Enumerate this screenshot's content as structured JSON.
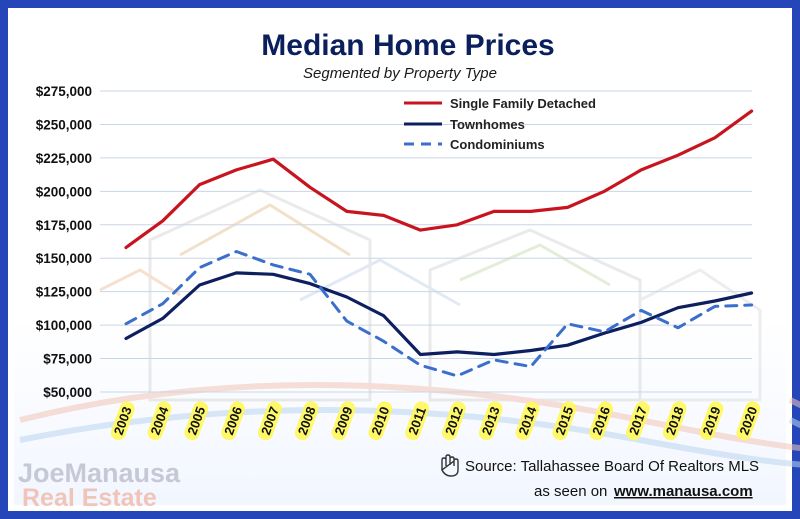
{
  "chart_data": {
    "type": "line",
    "title": "Median Home Prices",
    "subtitle": "Segmented by Property Type",
    "categories": [
      "2003",
      "2004",
      "2005",
      "2006",
      "2007",
      "2008",
      "2009",
      "2010",
      "2011",
      "2012",
      "2013",
      "2014",
      "2015",
      "2016",
      "2017",
      "2018",
      "2019",
      "2020"
    ],
    "y_tick_labels": [
      "$275,000",
      "$250,000",
      "$225,000",
      "$200,000",
      "$175,000",
      "$150,000",
      "$125,000",
      "$100,000",
      "$75,000",
      "$50,000"
    ],
    "y_ticks": [
      275000,
      250000,
      225000,
      200000,
      175000,
      150000,
      125000,
      100000,
      75000,
      50000
    ],
    "ylim": [
      50000,
      275000
    ],
    "grid": true,
    "legend_position": "top-right",
    "series": [
      {
        "name": "Single Family Detached",
        "color": "#c8141e",
        "style": "solid",
        "values": [
          158000,
          178000,
          205000,
          216000,
          224000,
          203000,
          185000,
          182000,
          171000,
          175000,
          185000,
          185000,
          188000,
          200000,
          216000,
          227000,
          240000,
          260000
        ]
      },
      {
        "name": "Townhomes",
        "color": "#0d1f5e",
        "style": "solid",
        "values": [
          90000,
          105000,
          130000,
          139000,
          138000,
          131000,
          121000,
          107000,
          78000,
          80000,
          78000,
          81000,
          85000,
          94000,
          102000,
          113000,
          118000,
          124000
        ]
      },
      {
        "name": "Condominiums",
        "color": "#3a6fcc",
        "style": "dashed",
        "values": [
          101000,
          116000,
          143000,
          155000,
          145000,
          138000,
          103000,
          88000,
          70000,
          62000,
          74000,
          69000,
          101000,
          95000,
          111000,
          98000,
          114000,
          115000
        ]
      }
    ]
  },
  "source_text": "Source: Tallahassee Board Of Realtors MLS",
  "seen_on_text": "as seen on",
  "url_text": "www.manausa.com",
  "logo_line1": "JoeManausa",
  "logo_line2": "Real Estate",
  "icons": {
    "source_icon": "hand-icon"
  }
}
